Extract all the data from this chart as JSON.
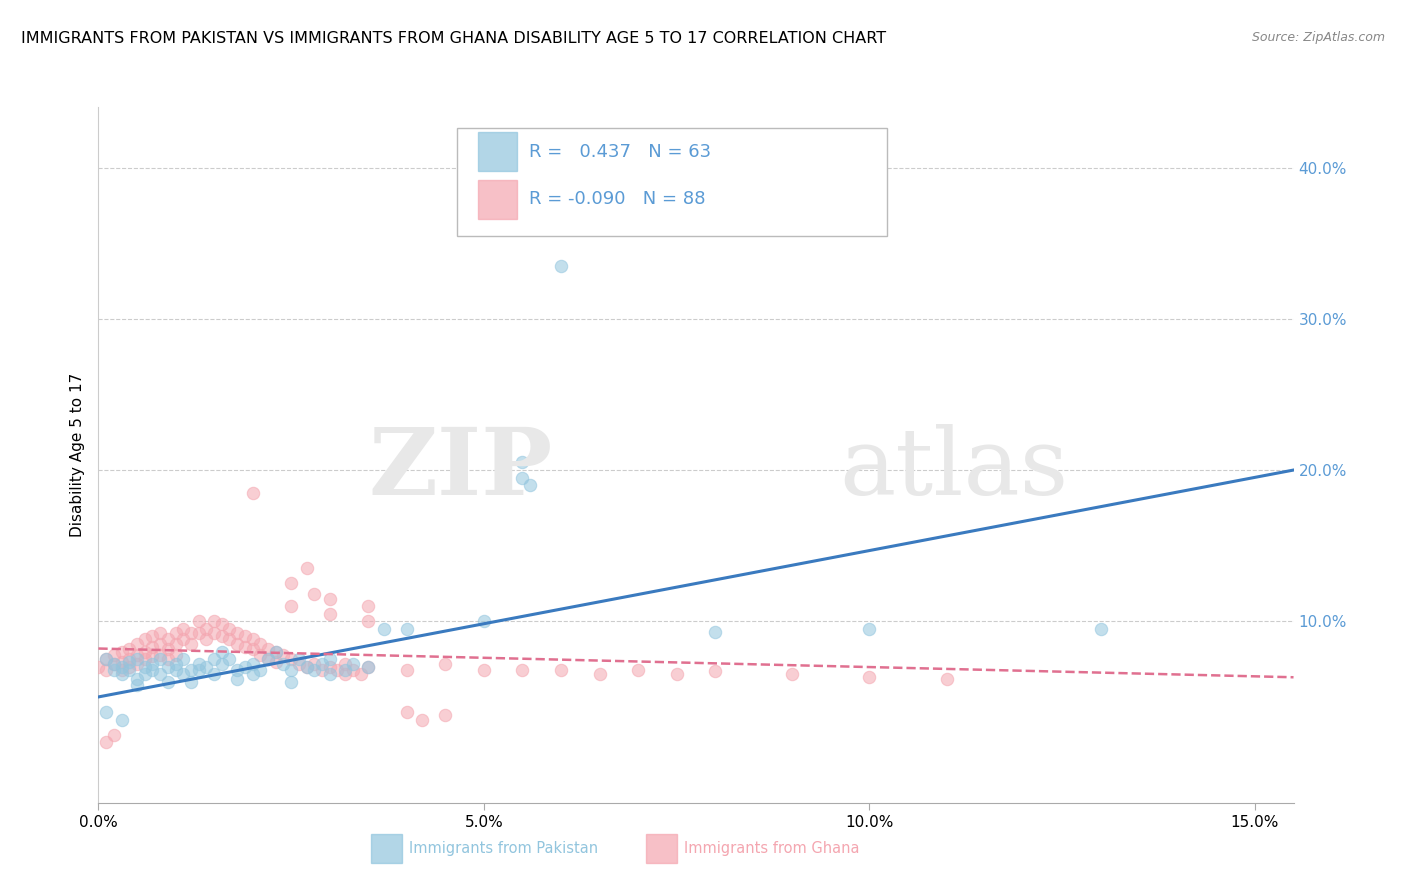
{
  "title": "IMMIGRANTS FROM PAKISTAN VS IMMIGRANTS FROM GHANA DISABILITY AGE 5 TO 17 CORRELATION CHART",
  "source": "Source: ZipAtlas.com",
  "ylabel": "Disability Age 5 to 17",
  "xlim": [
    0.0,
    0.155
  ],
  "ylim": [
    -0.02,
    0.44
  ],
  "xticks": [
    0.0,
    0.05,
    0.1,
    0.15
  ],
  "xtick_labels": [
    "0.0%",
    "5.0%",
    "10.0%",
    "15.0%"
  ],
  "yticks": [
    0.1,
    0.2,
    0.3,
    0.4
  ],
  "ytick_labels": [
    "10.0%",
    "20.0%",
    "30.0%",
    "40.0%"
  ],
  "pakistan_color": "#92c5de",
  "ghana_color": "#f4a6b0",
  "pakistan_line_color": "#3a7abf",
  "ghana_line_color": "#e07090",
  "pakistan_R": 0.437,
  "pakistan_N": 63,
  "ghana_R": -0.09,
  "ghana_N": 88,
  "title_fontsize": 11.5,
  "axis_label_fontsize": 11,
  "tick_fontsize": 11,
  "legend_fontsize": 13,
  "background_color": "#ffffff",
  "grid_color": "#cccccc",
  "right_tick_color": "#5b9bd5",
  "pakistan_scatter": [
    [
      0.001,
      0.075
    ],
    [
      0.002,
      0.072
    ],
    [
      0.002,
      0.068
    ],
    [
      0.003,
      0.07
    ],
    [
      0.003,
      0.065
    ],
    [
      0.004,
      0.073
    ],
    [
      0.004,
      0.068
    ],
    [
      0.005,
      0.075
    ],
    [
      0.005,
      0.062
    ],
    [
      0.005,
      0.058
    ],
    [
      0.006,
      0.07
    ],
    [
      0.006,
      0.065
    ],
    [
      0.007,
      0.072
    ],
    [
      0.007,
      0.068
    ],
    [
      0.008,
      0.075
    ],
    [
      0.008,
      0.065
    ],
    [
      0.009,
      0.07
    ],
    [
      0.009,
      0.06
    ],
    [
      0.01,
      0.072
    ],
    [
      0.01,
      0.068
    ],
    [
      0.011,
      0.075
    ],
    [
      0.011,
      0.065
    ],
    [
      0.012,
      0.068
    ],
    [
      0.012,
      0.06
    ],
    [
      0.013,
      0.072
    ],
    [
      0.013,
      0.068
    ],
    [
      0.014,
      0.07
    ],
    [
      0.015,
      0.075
    ],
    [
      0.015,
      0.065
    ],
    [
      0.016,
      0.08
    ],
    [
      0.016,
      0.072
    ],
    [
      0.017,
      0.075
    ],
    [
      0.018,
      0.068
    ],
    [
      0.018,
      0.062
    ],
    [
      0.019,
      0.07
    ],
    [
      0.02,
      0.072
    ],
    [
      0.02,
      0.065
    ],
    [
      0.021,
      0.068
    ],
    [
      0.022,
      0.075
    ],
    [
      0.023,
      0.08
    ],
    [
      0.024,
      0.072
    ],
    [
      0.025,
      0.068
    ],
    [
      0.025,
      0.06
    ],
    [
      0.026,
      0.075
    ],
    [
      0.027,
      0.07
    ],
    [
      0.028,
      0.068
    ],
    [
      0.029,
      0.072
    ],
    [
      0.03,
      0.075
    ],
    [
      0.03,
      0.065
    ],
    [
      0.032,
      0.068
    ],
    [
      0.033,
      0.072
    ],
    [
      0.035,
      0.07
    ],
    [
      0.037,
      0.095
    ],
    [
      0.04,
      0.095
    ],
    [
      0.05,
      0.1
    ],
    [
      0.055,
      0.205
    ],
    [
      0.055,
      0.195
    ],
    [
      0.056,
      0.19
    ],
    [
      0.06,
      0.335
    ],
    [
      0.08,
      0.093
    ],
    [
      0.1,
      0.095
    ],
    [
      0.13,
      0.095
    ],
    [
      0.001,
      0.04
    ],
    [
      0.003,
      0.035
    ]
  ],
  "ghana_scatter": [
    [
      0.0,
      0.07
    ],
    [
      0.001,
      0.075
    ],
    [
      0.001,
      0.068
    ],
    [
      0.002,
      0.078
    ],
    [
      0.002,
      0.072
    ],
    [
      0.003,
      0.08
    ],
    [
      0.003,
      0.073
    ],
    [
      0.003,
      0.068
    ],
    [
      0.004,
      0.082
    ],
    [
      0.004,
      0.075
    ],
    [
      0.004,
      0.07
    ],
    [
      0.005,
      0.085
    ],
    [
      0.005,
      0.078
    ],
    [
      0.005,
      0.072
    ],
    [
      0.006,
      0.088
    ],
    [
      0.006,
      0.08
    ],
    [
      0.006,
      0.075
    ],
    [
      0.007,
      0.09
    ],
    [
      0.007,
      0.083
    ],
    [
      0.007,
      0.077
    ],
    [
      0.008,
      0.092
    ],
    [
      0.008,
      0.085
    ],
    [
      0.008,
      0.078
    ],
    [
      0.009,
      0.088
    ],
    [
      0.009,
      0.082
    ],
    [
      0.009,
      0.075
    ],
    [
      0.01,
      0.092
    ],
    [
      0.01,
      0.085
    ],
    [
      0.01,
      0.078
    ],
    [
      0.011,
      0.095
    ],
    [
      0.011,
      0.088
    ],
    [
      0.012,
      0.092
    ],
    [
      0.012,
      0.085
    ],
    [
      0.013,
      0.1
    ],
    [
      0.013,
      0.092
    ],
    [
      0.014,
      0.095
    ],
    [
      0.014,
      0.088
    ],
    [
      0.015,
      0.1
    ],
    [
      0.015,
      0.092
    ],
    [
      0.016,
      0.098
    ],
    [
      0.016,
      0.09
    ],
    [
      0.017,
      0.095
    ],
    [
      0.017,
      0.088
    ],
    [
      0.018,
      0.092
    ],
    [
      0.018,
      0.085
    ],
    [
      0.019,
      0.09
    ],
    [
      0.019,
      0.083
    ],
    [
      0.02,
      0.088
    ],
    [
      0.02,
      0.082
    ],
    [
      0.021,
      0.085
    ],
    [
      0.021,
      0.078
    ],
    [
      0.022,
      0.082
    ],
    [
      0.022,
      0.075
    ],
    [
      0.023,
      0.08
    ],
    [
      0.023,
      0.073
    ],
    [
      0.024,
      0.078
    ],
    [
      0.025,
      0.075
    ],
    [
      0.026,
      0.072
    ],
    [
      0.027,
      0.07
    ],
    [
      0.028,
      0.072
    ],
    [
      0.029,
      0.068
    ],
    [
      0.03,
      0.07
    ],
    [
      0.031,
      0.068
    ],
    [
      0.032,
      0.072
    ],
    [
      0.032,
      0.065
    ],
    [
      0.033,
      0.068
    ],
    [
      0.034,
      0.065
    ],
    [
      0.035,
      0.07
    ],
    [
      0.04,
      0.068
    ],
    [
      0.045,
      0.072
    ],
    [
      0.05,
      0.068
    ],
    [
      0.055,
      0.068
    ],
    [
      0.06,
      0.068
    ],
    [
      0.065,
      0.065
    ],
    [
      0.07,
      0.068
    ],
    [
      0.075,
      0.065
    ],
    [
      0.08,
      0.067
    ],
    [
      0.09,
      0.065
    ],
    [
      0.1,
      0.063
    ],
    [
      0.11,
      0.062
    ],
    [
      0.02,
      0.185
    ],
    [
      0.025,
      0.125
    ],
    [
      0.027,
      0.135
    ],
    [
      0.028,
      0.118
    ],
    [
      0.025,
      0.11
    ],
    [
      0.03,
      0.115
    ],
    [
      0.03,
      0.105
    ],
    [
      0.035,
      0.11
    ],
    [
      0.035,
      0.1
    ],
    [
      0.04,
      0.04
    ],
    [
      0.042,
      0.035
    ],
    [
      0.045,
      0.038
    ],
    [
      0.001,
      0.02
    ],
    [
      0.002,
      0.025
    ]
  ],
  "pakistan_line": [
    [
      0.0,
      0.05
    ],
    [
      0.155,
      0.2
    ]
  ],
  "ghana_line": [
    [
      0.0,
      0.082
    ],
    [
      0.155,
      0.063
    ]
  ]
}
